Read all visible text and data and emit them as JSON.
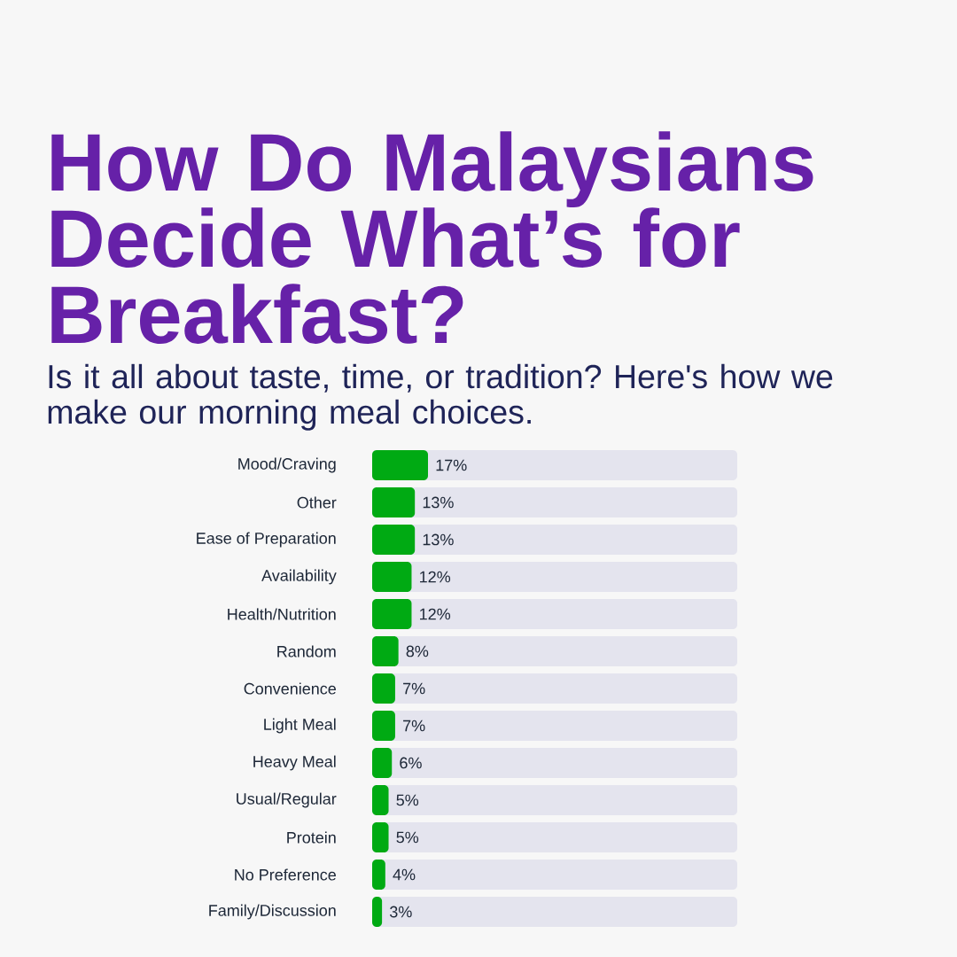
{
  "chart_data": {
    "type": "bar",
    "orientation": "horizontal",
    "title": "How Do Malaysians Decide What’s for Breakfast?",
    "subtitle": "Is it all about taste, time, or tradition? Here's how we make our morning meal choices.",
    "categories": [
      "Mood/Craving",
      "Other",
      "Ease of Preparation",
      "Availability",
      "Health/Nutrition",
      "Random",
      "Convenience",
      "Light Meal",
      "Heavy Meal",
      "Usual/Regular",
      "Protein",
      "No Preference",
      "Family/Discussion"
    ],
    "values": [
      17,
      13,
      13,
      12,
      12,
      8,
      7,
      7,
      6,
      5,
      5,
      4,
      3
    ],
    "value_labels": [
      "17%",
      "13%",
      "13%",
      "12%",
      "12%",
      "8%",
      "7%",
      "7%",
      "6%",
      "5%",
      "5%",
      "4%",
      "3%"
    ],
    "color": "#00aa13",
    "tick_labels": "y"
  }
}
